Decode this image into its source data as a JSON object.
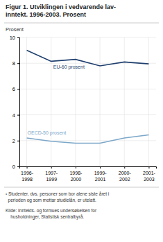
{
  "chart_data": {
    "type": "line",
    "title": "Figur 1. Utviklingen i vedvarende lav-\ninntekt. 1996-2003. Prosent",
    "y_label": "Prosent",
    "categories": [
      "1996-\n1998",
      "1997-\n1999",
      "1998-\n2000",
      "1999-\n2001",
      "2000-\n2002",
      "2001-\n2003"
    ],
    "series": [
      {
        "name": "EU-60 prosent",
        "color": "#1f3f6e",
        "values": [
          9.0,
          8.15,
          8.3,
          7.8,
          8.1,
          7.95
        ]
      },
      {
        "name": "OECD-50 prosent",
        "color": "#7ba7c9",
        "values": [
          2.2,
          1.95,
          1.8,
          1.8,
          2.2,
          2.45
        ]
      }
    ],
    "ylim": [
      0,
      10
    ],
    "yticks": [
      0,
      2,
      4,
      6,
      8,
      10
    ],
    "grid": true,
    "annotations": [
      "¹ Studenter, dvs. personer som bor alene siste året i\n  perioden og som mottar studielån, er utelatt.",
      "Kilde: Inntekts- og formues undersøkelsen for\n    husholdninger, Statistisk sentralbyrå."
    ]
  }
}
